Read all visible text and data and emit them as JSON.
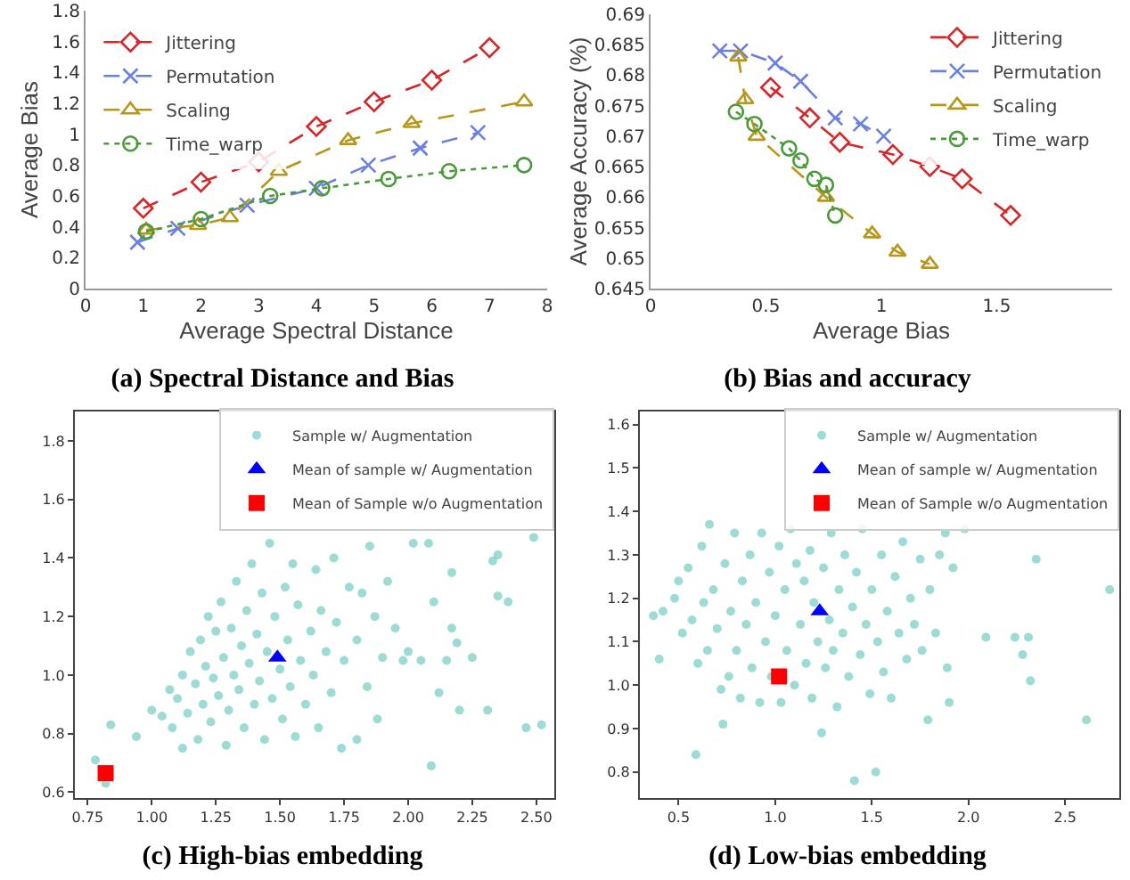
{
  "chart_data": [
    {
      "type": "line",
      "title": "(a) Spectral Distance and Bias",
      "xlabel": "Average Spectral Distance",
      "ylabel": "Average Bias",
      "xlim": [
        0,
        8
      ],
      "xticks": [
        0,
        1,
        2,
        3,
        4,
        5,
        6,
        7,
        8
      ],
      "ylim": [
        0,
        1.8
      ],
      "yticks": [
        0,
        0.2,
        0.4,
        0.6,
        0.8,
        1,
        1.2,
        1.4,
        1.6,
        1.8
      ],
      "legend": "top left",
      "series": [
        {
          "name": "Jittering",
          "color": "#d62728",
          "marker": "diamond",
          "line_style": "dashed",
          "x": [
            1,
            2,
            3,
            4,
            5,
            6,
            7
          ],
          "values": [
            0.52,
            0.69,
            0.82,
            1.05,
            1.21,
            1.35,
            1.56
          ]
        },
        {
          "name": "Permutation",
          "color": "#6a7fe0",
          "marker": "cross",
          "line_style": "dashed",
          "x": [
            0.9,
            1.6,
            2.8,
            4.0,
            4.9,
            5.8,
            6.8
          ],
          "values": [
            0.3,
            0.39,
            0.54,
            0.65,
            0.8,
            0.91,
            1.01
          ]
        },
        {
          "name": "Scaling",
          "color": "#b8961a",
          "marker": "triangle",
          "line_style": "dashed",
          "x": [
            1.05,
            1.95,
            2.5,
            3.35,
            4.55,
            5.65,
            7.6
          ],
          "values": [
            0.38,
            0.41,
            0.46,
            0.76,
            0.96,
            1.07,
            1.21
          ]
        },
        {
          "name": "Time_warp",
          "color": "#4a9a3a",
          "marker": "circle",
          "line_style": "dotted",
          "x": [
            1.05,
            2.0,
            3.2,
            4.1,
            5.25,
            6.3,
            7.6
          ],
          "values": [
            0.37,
            0.45,
            0.6,
            0.65,
            0.71,
            0.76,
            0.8
          ]
        }
      ]
    },
    {
      "type": "line",
      "title": "(b) Bias and accuracy",
      "xlabel": "Average Bias",
      "ylabel": "Average Accuracy (%)",
      "xlim": [
        0,
        2
      ],
      "xticks": [
        0,
        0.5,
        1,
        1.5
      ],
      "ylim": [
        0.645,
        0.69
      ],
      "yticks": [
        0.645,
        0.65,
        0.655,
        0.66,
        0.665,
        0.67,
        0.675,
        0.68,
        0.685,
        0.69
      ],
      "legend": "top right",
      "series": [
        {
          "name": "Jittering",
          "color": "#d62728",
          "marker": "diamond",
          "line_style": "dashed",
          "x": [
            0.52,
            0.69,
            0.82,
            1.05,
            1.21,
            1.35,
            1.56
          ],
          "values": [
            0.678,
            0.673,
            0.669,
            0.667,
            0.665,
            0.663,
            0.657
          ]
        },
        {
          "name": "Permutation",
          "color": "#6a7fe0",
          "marker": "cross",
          "line_style": "dashed",
          "x": [
            0.3,
            0.39,
            0.54,
            0.65,
            0.8,
            0.91,
            1.01
          ],
          "values": [
            0.684,
            0.684,
            0.682,
            0.679,
            0.673,
            0.672,
            0.67
          ]
        },
        {
          "name": "Scaling",
          "color": "#b8961a",
          "marker": "triangle",
          "line_style": "dashed",
          "x": [
            0.38,
            0.41,
            0.46,
            0.76,
            0.96,
            1.07,
            1.21
          ],
          "values": [
            0.683,
            0.676,
            0.67,
            0.66,
            0.654,
            0.651,
            0.649
          ]
        },
        {
          "name": "Time_warp",
          "color": "#4a9a3a",
          "marker": "circle",
          "line_style": "dotted",
          "x": [
            0.37,
            0.45,
            0.6,
            0.65,
            0.71,
            0.76,
            0.8
          ],
          "values": [
            0.674,
            0.672,
            0.668,
            0.666,
            0.663,
            0.662,
            0.657
          ]
        }
      ]
    },
    {
      "type": "scatter",
      "title": "(c) High-bias embedding",
      "xlim": [
        0.7,
        2.57
      ],
      "xticks": [
        0.75,
        {
          "value": 1,
          "label": "1.00"
        },
        1.25,
        {
          "value": 1.5,
          "label": "1.50"
        },
        1.75,
        {
          "value": 2,
          "label": "2.00"
        },
        2.25,
        {
          "value": 2.5,
          "label": "2.50"
        }
      ],
      "ylim": [
        0.58,
        1.9
      ],
      "yticks": [
        0.6,
        0.8,
        {
          "value": 1,
          "label": "1.0"
        },
        1.2,
        1.4,
        1.6,
        1.8
      ],
      "legend": "top right",
      "series": [
        {
          "name": "Sample w/ Augmentation",
          "color": "#5cc3b9",
          "marker": "circle",
          "x": [
            0.78,
            0.82,
            0.84,
            0.94,
            1.0,
            1.04,
            1.07,
            1.08,
            1.1,
            1.12,
            1.12,
            1.14,
            1.15,
            1.17,
            1.18,
            1.19,
            1.2,
            1.21,
            1.22,
            1.23,
            1.24,
            1.25,
            1.26,
            1.27,
            1.28,
            1.29,
            1.3,
            1.31,
            1.32,
            1.33,
            1.34,
            1.35,
            1.36,
            1.37,
            1.38,
            1.39,
            1.4,
            1.41,
            1.42,
            1.43,
            1.44,
            1.45,
            1.46,
            1.47,
            1.48,
            1.5,
            1.51,
            1.52,
            1.53,
            1.54,
            1.55,
            1.56,
            1.57,
            1.58,
            1.6,
            1.62,
            1.63,
            1.64,
            1.65,
            1.66,
            1.68,
            1.7,
            1.71,
            1.72,
            1.74,
            1.75,
            1.77,
            1.8,
            1.8,
            1.82,
            1.84,
            1.85,
            1.87,
            1.88,
            1.9,
            1.92,
            1.95,
            1.98,
            2.0,
            2.02,
            2.05,
            2.08,
            2.09,
            2.1,
            2.12,
            2.15,
            2.17,
            2.17,
            2.19,
            2.2,
            2.25,
            2.31,
            2.33,
            2.35,
            2.35,
            2.39,
            2.46,
            2.49,
            2.52
          ],
          "values": [
            0.71,
            0.63,
            0.83,
            0.79,
            0.88,
            0.86,
            0.95,
            0.82,
            0.92,
            0.75,
            1.0,
            0.87,
            1.08,
            0.97,
            0.78,
            1.12,
            0.9,
            1.03,
            1.2,
            0.84,
            0.99,
            1.15,
            0.93,
            1.25,
            1.06,
            0.76,
            0.88,
            1.16,
            1.0,
            1.32,
            0.95,
            1.1,
            0.82,
            1.22,
            1.04,
            1.38,
            0.9,
            1.14,
            0.98,
            1.28,
            0.78,
            1.08,
            1.45,
            0.92,
            1.2,
            1.02,
            0.85,
            1.3,
            1.12,
            0.96,
            1.38,
            0.79,
            1.24,
            1.05,
            0.9,
            1.15,
            1.0,
            1.36,
            0.82,
            1.22,
            1.08,
            0.94,
            1.4,
            1.18,
            0.75,
            1.05,
            1.3,
            1.12,
            0.78,
            1.28,
            0.96,
            1.44,
            1.2,
            0.85,
            1.06,
            1.32,
            1.16,
            1.05,
            1.08,
            1.45,
            1.05,
            1.45,
            0.69,
            1.25,
            0.94,
            1.05,
            1.35,
            1.16,
            1.11,
            0.88,
            1.06,
            0.88,
            1.39,
            1.27,
            1.41,
            1.25,
            0.82,
            1.47,
            0.83
          ]
        },
        {
          "name": "Mean of sample w/ Augmentation",
          "color": "#0000ff",
          "marker": "triangle",
          "x": [
            1.49
          ],
          "values": [
            1.06
          ]
        },
        {
          "name": "Mean of Sample w/o Augmentation",
          "color": "#ff0000",
          "marker": "square",
          "x": [
            0.82
          ],
          "values": [
            0.665
          ]
        }
      ]
    },
    {
      "type": "scatter",
      "title": "(d) Low-bias embedding",
      "xlim": [
        0.3,
        2.78
      ],
      "xticks": [
        0.5,
        {
          "value": 1,
          "label": "1.0"
        },
        1.5,
        {
          "value": 2,
          "label": "2.0"
        },
        2.5
      ],
      "ylim": [
        0.74,
        1.63
      ],
      "yticks": [
        0.8,
        0.9,
        {
          "value": 1,
          "label": "1.0"
        },
        1.1,
        1.2,
        1.3,
        1.4,
        1.5,
        1.6
      ],
      "legend": "top right",
      "series": [
        {
          "name": "Sample w/ Augmentation",
          "color": "#5cc3b9",
          "marker": "circle",
          "x": [
            0.37,
            0.4,
            0.42,
            0.48,
            0.5,
            0.52,
            0.55,
            0.57,
            0.59,
            0.6,
            0.62,
            0.63,
            0.65,
            0.66,
            0.68,
            0.7,
            0.72,
            0.73,
            0.74,
            0.76,
            0.77,
            0.79,
            0.8,
            0.82,
            0.83,
            0.85,
            0.87,
            0.88,
            0.9,
            0.92,
            0.93,
            0.95,
            0.97,
            0.98,
            1.0,
            1.02,
            1.03,
            1.05,
            1.06,
            1.08,
            1.1,
            1.11,
            1.13,
            1.15,
            1.16,
            1.18,
            1.19,
            1.2,
            1.22,
            1.24,
            1.25,
            1.26,
            1.28,
            1.29,
            1.3,
            1.32,
            1.33,
            1.35,
            1.36,
            1.38,
            1.4,
            1.41,
            1.42,
            1.44,
            1.45,
            1.47,
            1.49,
            1.5,
            1.52,
            1.53,
            1.55,
            1.56,
            1.58,
            1.6,
            1.62,
            1.64,
            1.66,
            1.68,
            1.7,
            1.72,
            1.75,
            1.76,
            1.79,
            1.8,
            1.83,
            1.85,
            1.88,
            1.89,
            1.9,
            1.92,
            1.98,
            2.09,
            2.24,
            2.28,
            2.31,
            2.32,
            2.35,
            2.61,
            2.73
          ],
          "values": [
            1.16,
            1.06,
            1.17,
            1.2,
            1.24,
            1.12,
            1.27,
            1.15,
            0.84,
            1.05,
            1.32,
            1.19,
            1.08,
            1.37,
            1.22,
            1.13,
            0.99,
            0.91,
            1.28,
            1.02,
            1.17,
            1.35,
            1.08,
            0.97,
            1.24,
            1.14,
            1.3,
            1.04,
            1.19,
            0.96,
            1.35,
            1.1,
            1.26,
            1.02,
            1.16,
            1.32,
            0.96,
            1.22,
            1.08,
            1.36,
            1.0,
            1.28,
            1.14,
            1.24,
            1.05,
            1.31,
            0.97,
            1.19,
            1.1,
            0.89,
            1.27,
            1.04,
            1.15,
            1.35,
            1.08,
            0.95,
            1.22,
            1.12,
            1.3,
            1.02,
            1.18,
            0.78,
            1.26,
            1.07,
            1.36,
            1.14,
            0.98,
            1.22,
            0.8,
            1.1,
            1.3,
            1.03,
            1.17,
            0.97,
            1.25,
            1.12,
            1.33,
            1.06,
            1.2,
            1.14,
            1.29,
            1.08,
            0.92,
            1.22,
            1.12,
            1.3,
            1.35,
            1.04,
            0.96,
            1.27,
            1.36,
            1.11,
            1.11,
            1.07,
            1.11,
            1.01,
            1.29,
            0.92,
            1.22
          ]
        },
        {
          "name": "Mean of sample w/ Augmentation",
          "color": "#0000ff",
          "marker": "triangle",
          "x": [
            1.23
          ],
          "values": [
            1.17
          ]
        },
        {
          "name": "Mean of Sample w/o Augmentation",
          "color": "#ff0000",
          "marker": "square",
          "x": [
            1.02
          ],
          "values": [
            1.02
          ]
        }
      ]
    }
  ]
}
